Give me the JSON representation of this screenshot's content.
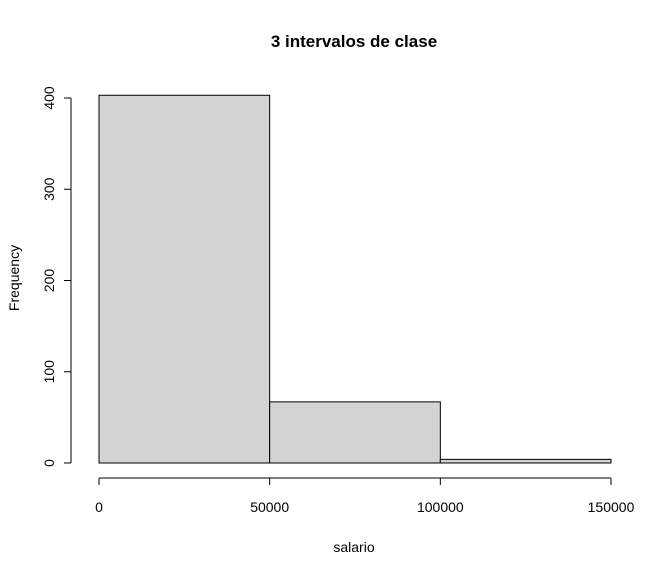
{
  "chart_data": {
    "type": "bar",
    "title": "3 intervalos de clase",
    "xlabel": "salario",
    "ylabel": "Frequency",
    "bins": [
      {
        "start": 0,
        "end": 50000,
        "count": 403
      },
      {
        "start": 50000,
        "end": 100000,
        "count": 67
      },
      {
        "start": 100000,
        "end": 150000,
        "count": 4
      }
    ],
    "xlim": [
      0,
      150000
    ],
    "ylim": [
      0,
      400
    ],
    "x_ticks": [
      0,
      50000,
      100000,
      150000
    ],
    "x_tick_labels": [
      "0",
      "50000",
      "100000",
      "150000"
    ],
    "y_ticks": [
      0,
      100,
      200,
      300,
      400
    ],
    "y_tick_labels": [
      "0",
      "100",
      "200",
      "300",
      "400"
    ],
    "bar_color": "#d3d3d3",
    "grid": false,
    "legend": "none"
  }
}
